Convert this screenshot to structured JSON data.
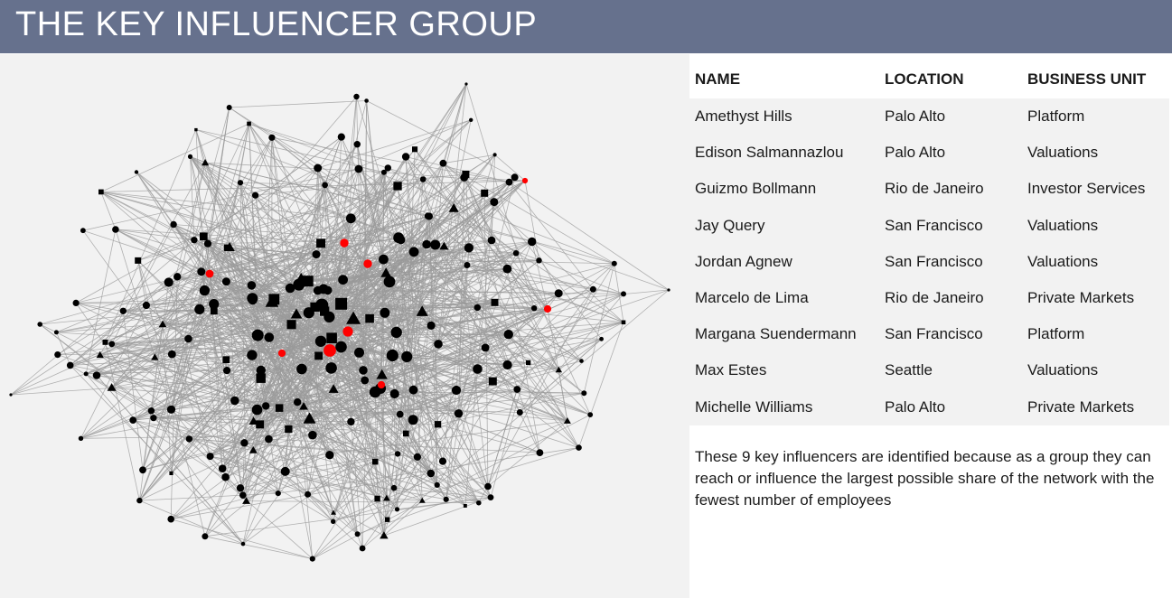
{
  "header": {
    "title": "THE KEY INFLUENCER GROUP",
    "background_color": "#66718d"
  },
  "network": {
    "edge_color": "#9a9a9a",
    "node_color": "#000000",
    "influencer_color": "#ff0000",
    "node_shapes": [
      "circle",
      "square",
      "triangle"
    ]
  },
  "table": {
    "headers": [
      "NAME",
      "LOCATION",
      "BUSINESS UNIT"
    ],
    "rows": [
      [
        "Amethyst Hills",
        "Palo Alto",
        "Platform"
      ],
      [
        "Edison Salmannazlou",
        "Palo Alto",
        "Valuations"
      ],
      [
        "Guizmo Bollmann",
        "Rio de Janeiro",
        "Investor Services"
      ],
      [
        "Jay Query",
        "San Francisco",
        "Valuations"
      ],
      [
        "Jordan Agnew",
        "San Francisco",
        "Valuations"
      ],
      [
        "Marcelo de Lima",
        "Rio de Janeiro",
        "Private Markets"
      ],
      [
        "Margana Suendermann",
        "San Francisco",
        "Platform"
      ],
      [
        "Max Estes",
        "Seattle",
        "Valuations"
      ],
      [
        "Michelle Williams",
        "Palo Alto",
        "Private Markets"
      ]
    ]
  },
  "note": "These 9 key influencers are identified because as a group they can reach or influence the largest possible share of the network with the fewest number of employees"
}
